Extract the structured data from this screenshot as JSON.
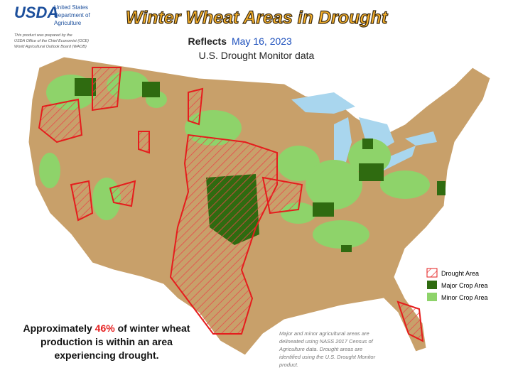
{
  "header": {
    "logo": "USDA",
    "agency": [
      "United States",
      "Department of",
      "Agriculture"
    ],
    "disclaimer": [
      "This product was prepared by the",
      "USDA Office of the Chief Economist (OCE)",
      "World Agricultural Outlook Board (WAOB)"
    ],
    "title": "Winter Wheat Areas in Drought",
    "reflects": "Reflects",
    "date": "May 16, 2023",
    "source": "U.S. Drought Monitor data"
  },
  "legend": {
    "items": [
      "Drought Area",
      "Major Crop Area",
      "Minor Crop Area"
    ]
  },
  "summary": {
    "lines": [
      [
        "Approximately ",
        "46%",
        " of winter wheat"
      ],
      [
        "production is within an area"
      ],
      [
        "experiencing drought."
      ]
    ]
  },
  "note": {
    "lines": [
      "Major and minor agricultural areas are",
      "delineated using NASS 2017 Census of",
      "Agriculture data.  Drought areas are",
      "identified using the U.S. Drought Monitor",
      "product."
    ]
  }
}
